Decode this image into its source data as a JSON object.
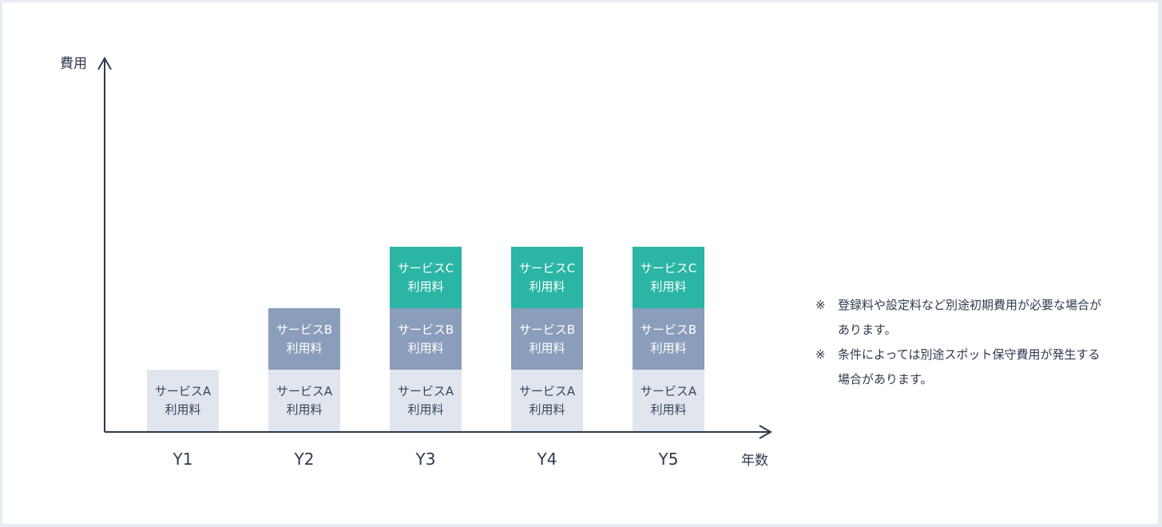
{
  "chart_data": {
    "type": "bar",
    "stacked": true,
    "ylabel": "費用",
    "xlabel": "年数",
    "categories": [
      "Y1",
      "Y2",
      "Y3",
      "Y4",
      "Y5"
    ],
    "series": [
      {
        "name": "サービスA\n利用料",
        "values": [
          1,
          1,
          1,
          1,
          1
        ],
        "color": "#e1e6ee"
      },
      {
        "name": "サービスB\n利用料",
        "values": [
          0,
          1,
          1,
          1,
          1
        ],
        "color": "#8a9dbb"
      },
      {
        "name": "サービスC\n利用料",
        "values": [
          0,
          0,
          1,
          1,
          1
        ],
        "color": "#2ab5a5"
      }
    ],
    "ylim": [
      0,
      6
    ],
    "grid": false
  },
  "notes": [
    {
      "mark": "※",
      "text": "登録料や設定料など別途初期費用が必要な場合があります。"
    },
    {
      "mark": "※",
      "text": "条件によっては別途スポット保守費用が発生する場合があります。"
    }
  ]
}
